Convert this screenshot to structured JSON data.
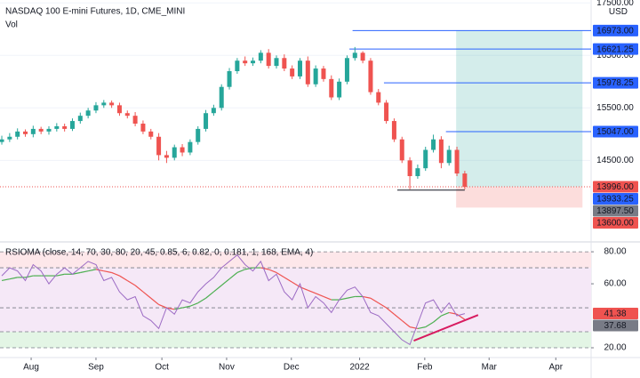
{
  "chart_data": [
    {
      "type": "candlestick",
      "title": "NASDAQ 100 E-mini Futures, 1D, CME_MINI",
      "subtitle": "Vol",
      "currency": "USD",
      "up_color": "#26a69a",
      "down_color": "#ef5350",
      "open": [
        14850,
        14900,
        14950,
        15050,
        15000,
        15100,
        15050,
        15100,
        15150,
        15100,
        15250,
        15350,
        15450,
        15550,
        15600,
        15550,
        15400,
        15350,
        15200,
        15050,
        14950,
        14600,
        14550,
        14750,
        14650,
        14850,
        15100,
        15400,
        15500,
        15900,
        16200,
        16400,
        16350,
        16400,
        16550,
        16300,
        16450,
        16250,
        16100,
        16400,
        15950,
        16250,
        16050,
        15700,
        16000,
        16450,
        16550,
        16400,
        15800,
        15600,
        15250,
        14900,
        14500,
        14200,
        14350,
        14700,
        14900,
        14450,
        14700,
        14250
      ],
      "high": [
        14970,
        15020,
        15110,
        15090,
        15160,
        15140,
        15150,
        15210,
        15200,
        15300,
        15410,
        15500,
        15610,
        15650,
        15640,
        15600,
        15450,
        15420,
        15260,
        15100,
        15020,
        14680,
        14800,
        14810,
        14900,
        15150,
        15460,
        15560,
        15950,
        16260,
        16450,
        16480,
        16460,
        16600,
        16620,
        16500,
        16520,
        16310,
        16450,
        16480,
        16310,
        16300,
        16120,
        16060,
        16500,
        16660,
        16580,
        16450,
        15860,
        15650,
        15300,
        14950,
        14560,
        14420,
        14760,
        14990,
        14960,
        14780,
        14760,
        14300
      ],
      "low": [
        14800,
        14850,
        14900,
        14950,
        14940,
        15000,
        14990,
        15050,
        15050,
        15060,
        15200,
        15300,
        15400,
        15500,
        15500,
        15350,
        15300,
        15150,
        15000,
        14900,
        14500,
        14450,
        14500,
        14580,
        14600,
        14800,
        15050,
        15350,
        15450,
        15850,
        16150,
        16300,
        16300,
        16350,
        16250,
        16250,
        16200,
        16050,
        16050,
        15900,
        15900,
        16000,
        15650,
        15650,
        15950,
        16400,
        16350,
        15750,
        15550,
        15200,
        14850,
        14450,
        13950,
        14150,
        14300,
        14650,
        14350,
        14400,
        14200,
        13950
      ],
      "close": [
        14900,
        14950,
        15050,
        15000,
        15100,
        15050,
        15100,
        15150,
        15100,
        15250,
        15350,
        15450,
        15550,
        15600,
        15550,
        15400,
        15350,
        15200,
        15050,
        14950,
        14600,
        14550,
        14750,
        14650,
        14850,
        15100,
        15400,
        15500,
        15900,
        16200,
        16400,
        16350,
        16400,
        16550,
        16300,
        16450,
        16250,
        16100,
        16400,
        15950,
        16250,
        16050,
        15700,
        16000,
        16450,
        16550,
        16400,
        15800,
        15600,
        15250,
        14900,
        14500,
        14200,
        14350,
        14700,
        14900,
        14450,
        14700,
        14250,
        13996
      ],
      "xlim": [
        -0.23,
        75.1
      ],
      "ylim": [
        12980,
        17556
      ],
      "yticks": [
        {
          "value": 14500,
          "label": "14500.00"
        },
        {
          "value": 15500,
          "label": "15500.00"
        },
        {
          "value": 16500,
          "label": "16500.00"
        },
        {
          "value": 17500,
          "label": "17500.00"
        }
      ],
      "level_color": "#2962ff",
      "levels": [
        {
          "value": 16973,
          "label": "16973.00",
          "from": 44.7
        },
        {
          "value": 16621.25,
          "label": "16621.25",
          "from": 44.3
        },
        {
          "value": 15978.25,
          "label": "15978.25",
          "from": 48.7
        },
        {
          "value": 15047,
          "label": "15047.00",
          "from": 56.6
        }
      ],
      "current": {
        "value": 13996,
        "label": "13996.00",
        "color": "#ef5350"
      },
      "support": {
        "value": 13933.25,
        "label": "13933.25",
        "from": 50.4,
        "to": 59,
        "color": "#2962ff"
      },
      "marker": {
        "value": 13897.5,
        "label": "13897.50",
        "color": "#787b86"
      },
      "stop": {
        "value": 13600,
        "label": "13600.00",
        "color": "#ef5350"
      },
      "position": {
        "x": [
          57.9,
          74
        ]
      }
    },
    {
      "type": "rsi",
      "title": "RSIOMA (close, 14, 70, 30, 80, 20, 45, 0.85, 6, 0.82, 0, 0.181, 1, 168, EMA, 4)",
      "rsi": {
        "color": "#9c6bc4",
        "values": [
          65,
          70,
          68,
          62,
          72,
          68,
          60,
          66,
          70,
          66,
          70,
          74,
          72,
          62,
          64,
          55,
          50,
          52,
          40,
          37,
          32,
          45,
          41,
          50,
          48,
          55,
          60,
          64,
          70,
          74,
          78,
          72,
          68,
          74,
          62,
          66,
          55,
          50,
          60,
          45,
          52,
          48,
          42,
          50,
          56,
          58,
          52,
          42,
          40,
          35,
          30,
          25,
          22,
          35,
          48,
          50,
          42,
          48,
          40,
          41.38
        ]
      },
      "ma": {
        "up_color": "#4caf50",
        "down_color": "#ef5350",
        "values": [
          62,
          63,
          64,
          64,
          65,
          65,
          65,
          65,
          66,
          66,
          67,
          68,
          69,
          68,
          67,
          65,
          62,
          59,
          55,
          51,
          47,
          45,
          44,
          45,
          46,
          48,
          51,
          55,
          59,
          63,
          67,
          69,
          70,
          70,
          69,
          67,
          64,
          61,
          58,
          56,
          54,
          52,
          50,
          50,
          51,
          52,
          52,
          51,
          48,
          45,
          41,
          37,
          33,
          32,
          33,
          36,
          40,
          42,
          41,
          37.68
        ]
      },
      "rsi_label": {
        "value": 41.38,
        "label": "41.38",
        "color": "#ef5350"
      },
      "ma_label": {
        "value": 37.68,
        "label": "37.68",
        "color": "#787b86"
      },
      "bands": [
        {
          "from": 70,
          "to": 80,
          "color": "#fde7ea"
        },
        {
          "from": 30,
          "to": 70,
          "color": "#f5e8f7"
        },
        {
          "from": 20,
          "to": 30,
          "color": "#e3f5e5"
        }
      ],
      "levels": [
        80,
        70,
        45,
        30,
        20
      ],
      "trendline": {
        "x": [
          52.5,
          60.7
        ],
        "y": [
          24.4,
          40.5
        ],
        "color": "#d81b60"
      },
      "xlim": [
        -0.23,
        75.1
      ],
      "ylim": [
        15,
        84.5
      ],
      "yticks": [
        {
          "value": 20,
          "label": "20.00"
        },
        {
          "value": 60,
          "label": "60.00"
        },
        {
          "value": 80,
          "label": "80.00"
        }
      ],
      "xticks": [
        {
          "value": 3.74,
          "label": "Aug"
        },
        {
          "value": 12.0,
          "label": "Sep"
        },
        {
          "value": 20.4,
          "label": "Oct"
        },
        {
          "value": 28.65,
          "label": "Nov"
        },
        {
          "value": 36.9,
          "label": "Dec"
        },
        {
          "value": 45.6,
          "label": "2022"
        },
        {
          "value": 53.9,
          "label": "Feb"
        },
        {
          "value": 62.1,
          "label": "Mar"
        },
        {
          "value": 70.6,
          "label": "Apr"
        }
      ]
    }
  ]
}
